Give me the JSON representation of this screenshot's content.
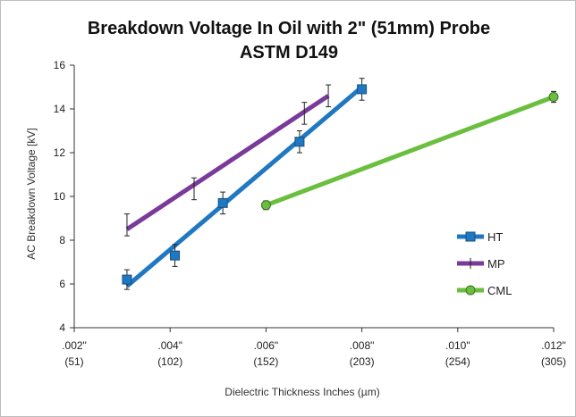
{
  "chart_data": {
    "type": "line",
    "title": "Breakdown Voltage In Oil with 2\" (51mm) Probe",
    "subtitle": "ASTM D149",
    "xlabel": "Dielectric Thickness Inches (µm)",
    "ylabel": "AC Breakdown Voltage [kV]",
    "xlim": [
      0.002,
      0.012
    ],
    "ylim": [
      4,
      16
    ],
    "x_ticks": [
      {
        "value": 0.002,
        "line1": ".002\"",
        "line2": "(51)"
      },
      {
        "value": 0.004,
        "line1": ".004\"",
        "line2": "(102)"
      },
      {
        "value": 0.006,
        "line1": ".006\"",
        "line2": "(152)"
      },
      {
        "value": 0.008,
        "line1": ".008\"",
        "line2": "(203)"
      },
      {
        "value": 0.01,
        "line1": ".010\"",
        "line2": "(254)"
      },
      {
        "value": 0.012,
        "line1": ".012\"",
        "line2": "(305)"
      }
    ],
    "y_ticks": [
      4,
      6,
      8,
      10,
      12,
      14,
      16
    ],
    "grid": false,
    "legend_position": "right",
    "series": [
      {
        "name": "HT",
        "color": "#1f78c1",
        "marker": "square",
        "line": {
          "x": [
            0.0031,
            0.008
          ],
          "y": [
            5.9,
            15.0
          ]
        },
        "points": [
          {
            "x": 0.0031,
            "y": 6.2,
            "err": 0.45
          },
          {
            "x": 0.0041,
            "y": 7.3,
            "err": 0.5
          },
          {
            "x": 0.0051,
            "y": 9.7,
            "err": 0.5
          },
          {
            "x": 0.0067,
            "y": 12.5,
            "err": 0.5
          },
          {
            "x": 0.008,
            "y": 14.9,
            "err": 0.5
          }
        ]
      },
      {
        "name": "MP",
        "color": "#7a3a9a",
        "marker": "bar",
        "line": {
          "x": [
            0.0031,
            0.0073
          ],
          "y": [
            8.5,
            14.6
          ]
        },
        "points": [
          {
            "x": 0.0031,
            "y": 8.7,
            "err": 0.5
          },
          {
            "x": 0.0045,
            "y": 10.35,
            "err": 0.5
          },
          {
            "x": 0.0068,
            "y": 13.8,
            "err": 0.5
          },
          {
            "x": 0.0073,
            "y": 14.6,
            "err": 0.5
          }
        ]
      },
      {
        "name": "CML",
        "color": "#6abf3f",
        "marker": "circle",
        "line": {
          "x": [
            0.006,
            0.012
          ],
          "y": [
            9.6,
            14.55
          ]
        },
        "points": [
          {
            "x": 0.006,
            "y": 9.6,
            "err": 0.2
          },
          {
            "x": 0.012,
            "y": 14.55,
            "err": 0.25
          }
        ]
      }
    ]
  }
}
